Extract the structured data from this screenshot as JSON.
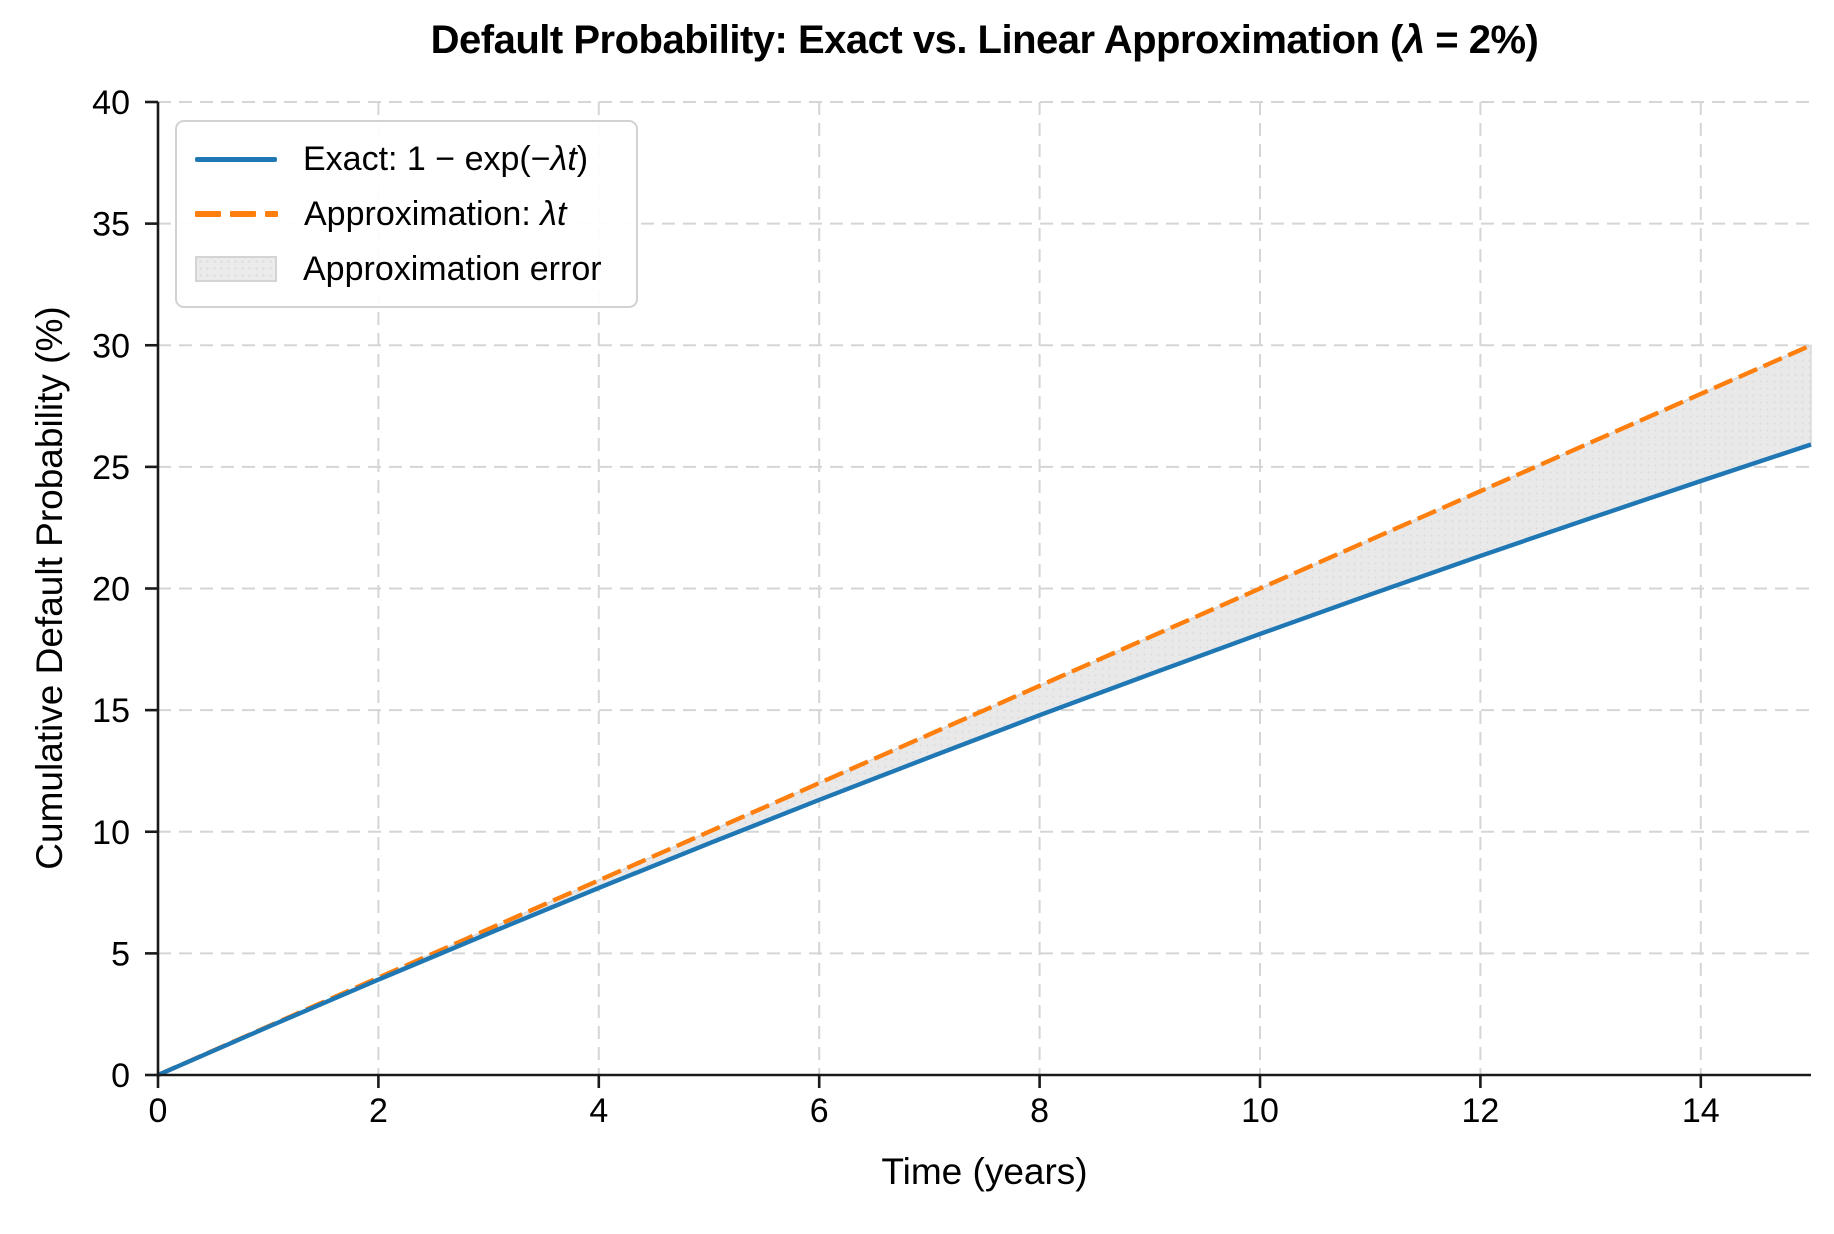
{
  "title": {
    "prefix": "Default Probability: Exact vs. Linear Approximation (",
    "lambda_symbol": "λ",
    "suffix": " = 2%)"
  },
  "axes": {
    "x_label": "Time (years)",
    "y_label": "Cumulative Default Probability (%)",
    "x_ticks": [
      0,
      2,
      4,
      6,
      8,
      10,
      12,
      14
    ],
    "y_ticks": [
      0,
      5,
      10,
      15,
      20,
      25,
      30,
      35,
      40
    ]
  },
  "legend": {
    "items": [
      {
        "swatch": "blue-solid-line",
        "prefix": "Exact: 1 − exp(−",
        "math": "λt",
        "suffix": ")"
      },
      {
        "swatch": "orange-dashed-line",
        "prefix": "Approximation: ",
        "math": "λt",
        "suffix": ""
      },
      {
        "swatch": "gray-patch",
        "prefix": "Approximation error",
        "math": "",
        "suffix": ""
      }
    ]
  },
  "colors": {
    "exact_line": "#1f77b4",
    "approx_line": "#ff7f0e",
    "error_fill": "#e9e9e9",
    "error_fill_dot": "#dadada",
    "error_fill_edge": "#d9d9d9",
    "grid": "#d5d5d5",
    "spine": "#1a1a1a",
    "text": "#000000"
  },
  "chart_data": {
    "type": "line",
    "title": "Default Probability: Exact vs. Linear Approximation (λ = 2%)",
    "xlabel": "Time (years)",
    "ylabel": "Cumulative Default Probability (%)",
    "xlim": [
      0,
      15
    ],
    "ylim": [
      0,
      40
    ],
    "grid": true,
    "grid_style": "dashed",
    "legend_position": "upper left",
    "lambda_percent": 2,
    "x": [
      0,
      1,
      2,
      3,
      4,
      5,
      6,
      7,
      8,
      9,
      10,
      11,
      12,
      13,
      14,
      15
    ],
    "series": [
      {
        "name": "Exact: 1 − exp(−λt)",
        "style": "solid",
        "color": "#1f77b4",
        "values": [
          0,
          1.98,
          3.92,
          5.82,
          7.69,
          9.52,
          11.31,
          13.06,
          14.79,
          16.47,
          18.13,
          19.75,
          21.34,
          22.89,
          24.42,
          25.92
        ]
      },
      {
        "name": "Approximation: λt",
        "style": "dashed",
        "color": "#ff7f0e",
        "values": [
          0,
          2,
          4,
          6,
          8,
          10,
          12,
          14,
          16,
          18,
          20,
          22,
          24,
          26,
          28,
          30
        ]
      }
    ],
    "fill_between": {
      "name": "Approximation error",
      "between": [
        "Exact: 1 − exp(−λt)",
        "Approximation: λt"
      ],
      "color": "#e9e9e9"
    }
  }
}
